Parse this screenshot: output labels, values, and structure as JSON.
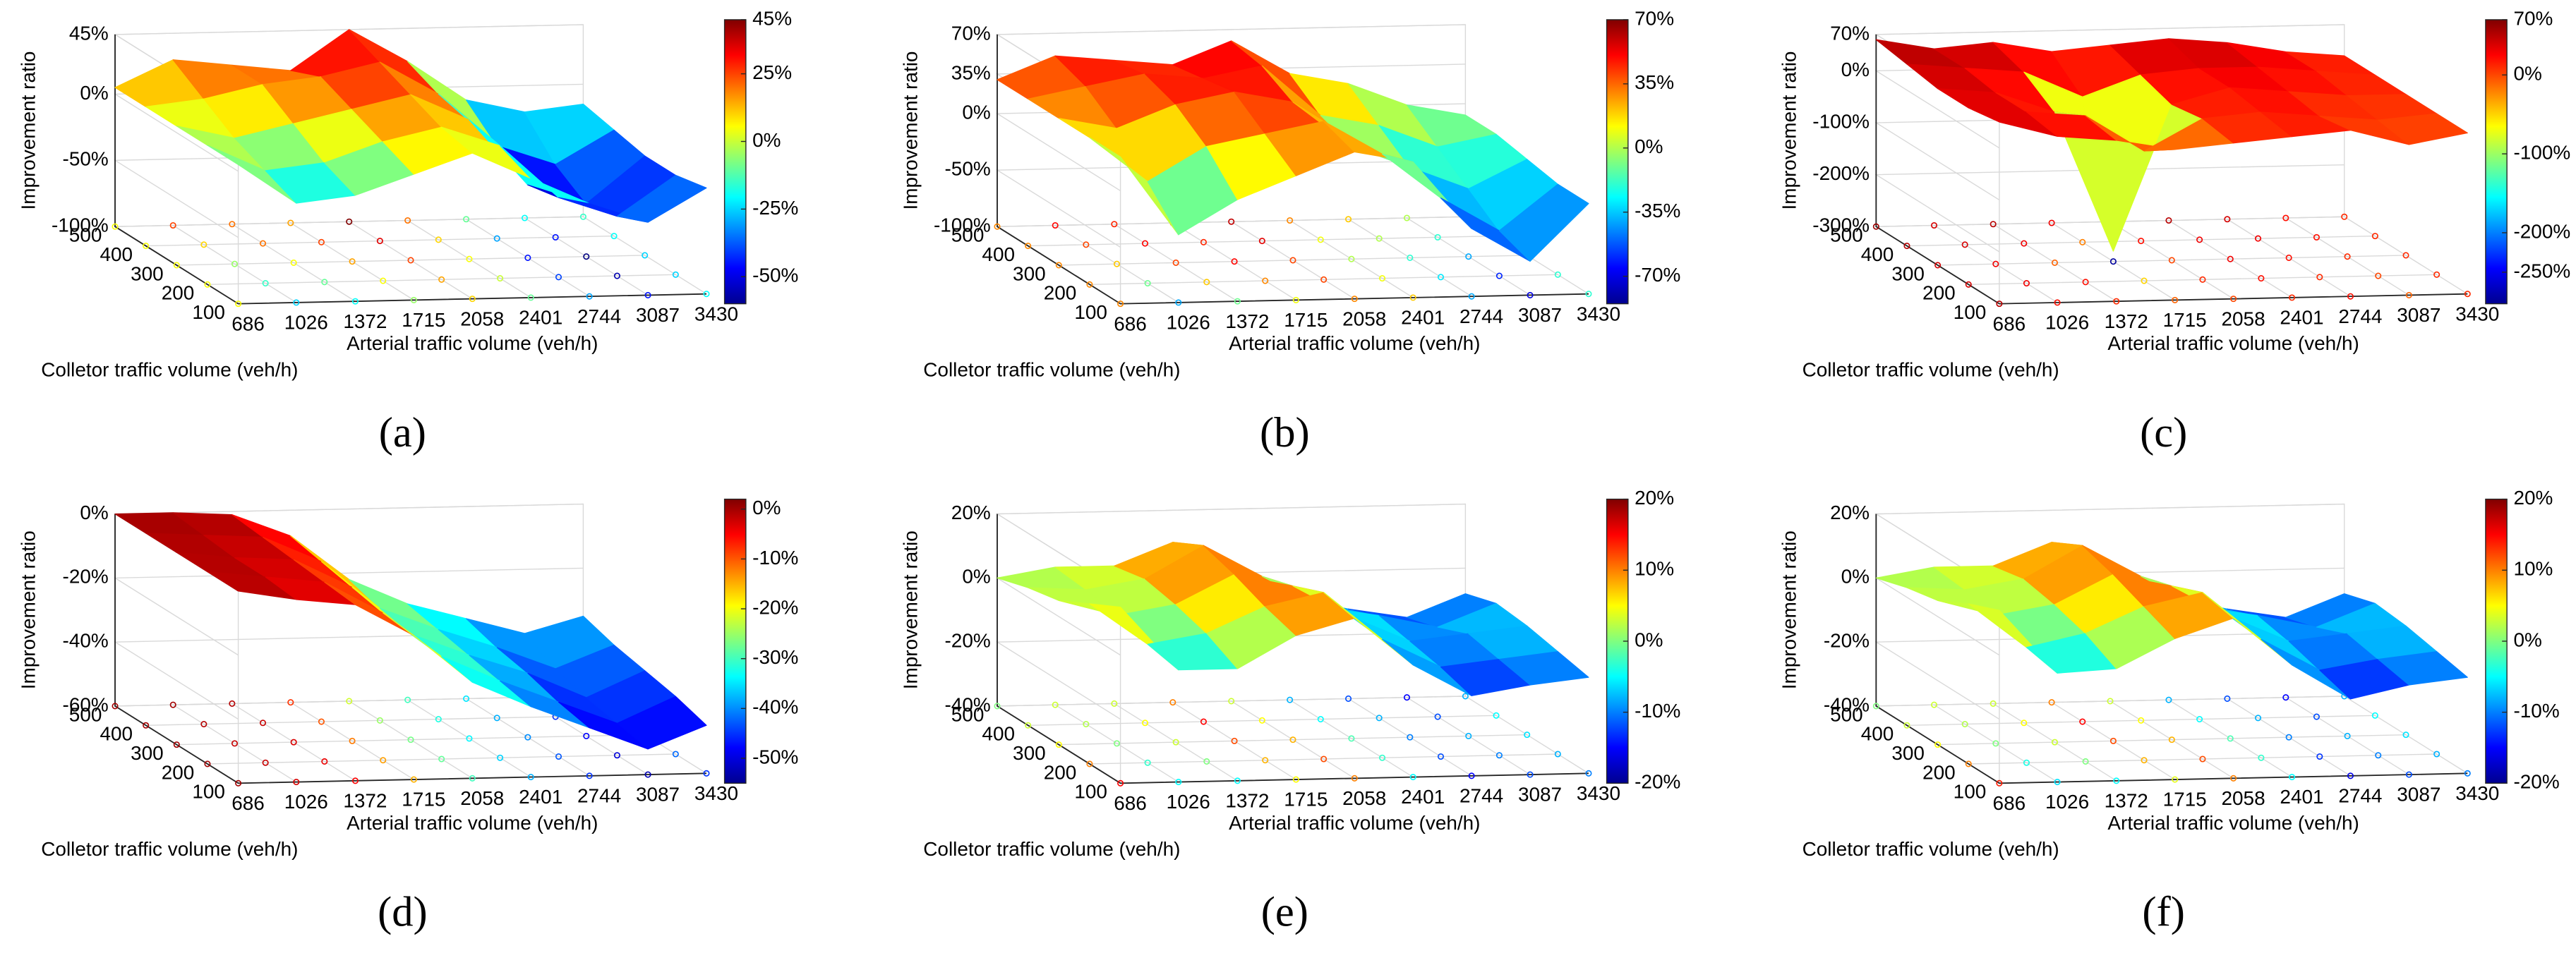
{
  "chart_data": [
    {
      "type": "surface",
      "panel": "(a)",
      "zlabel": "Improvement ratio",
      "xlabel": "Arterial traffic volume (veh/h)",
      "ylabel": "Colletor traffic volume (veh/h)",
      "x": [
        686,
        1026,
        1372,
        1715,
        2058,
        2401,
        2744,
        3087,
        3430
      ],
      "xlim": [
        686,
        3430
      ],
      "xticks": [
        686,
        1026,
        1372,
        1715,
        2058,
        2401,
        2744,
        3087,
        3430
      ],
      "y": [
        100,
        200,
        300,
        400,
        500
      ],
      "ylim": [
        100,
        500
      ],
      "yticks": [
        100,
        200,
        300,
        400,
        500
      ],
      "zlim": [
        -100,
        45
      ],
      "zticks": [
        {
          "value": -100,
          "label": "-100%"
        },
        {
          "value": -50,
          "label": "-50%"
        },
        {
          "value": 0,
          "label": "0%"
        },
        {
          "value": 45,
          "label": "45%"
        }
      ],
      "clim": [
        -60,
        45
      ],
      "cticks": [
        {
          "value": -50,
          "label": "-50%"
        },
        {
          "value": -25,
          "label": "-25%"
        },
        {
          "value": 0,
          "label": "0%"
        },
        {
          "value": 25,
          "label": "25%"
        },
        {
          "value": 45,
          "label": "45%"
        }
      ],
      "values": [
        [
          5,
          -25,
          -20,
          -5,
          10,
          -10,
          -30,
          -45,
          -20
        ],
        [
          5,
          -15,
          -10,
          5,
          15,
          0,
          -40,
          -55,
          -25
        ],
        [
          5,
          -5,
          5,
          15,
          25,
          5,
          -45,
          -60,
          -25
        ],
        [
          5,
          10,
          20,
          25,
          35,
          10,
          -30,
          -45,
          -20
        ],
        [
          5,
          25,
          20,
          15,
          45,
          20,
          -10,
          -20,
          -15
        ]
      ]
    },
    {
      "type": "surface",
      "panel": "(b)",
      "zlabel": "Improvement ratio",
      "xlabel": "Arterial traffic volume (veh/h)",
      "ylabel": "Colletor traffic volume (veh/h)",
      "x": [
        686,
        1026,
        1372,
        1715,
        2058,
        2401,
        2744,
        3087,
        3430
      ],
      "xlim": [
        686,
        3430
      ],
      "xticks": [
        686,
        1026,
        1372,
        1715,
        2058,
        2401,
        2744,
        3087,
        3430
      ],
      "y": [
        100,
        200,
        300,
        400,
        500
      ],
      "ylim": [
        100,
        500
      ],
      "yticks": [
        100,
        200,
        300,
        400,
        500
      ],
      "zlim": [
        -100,
        70
      ],
      "zticks": [
        {
          "value": -100,
          "label": "-100%"
        },
        {
          "value": -50,
          "label": "-50%"
        },
        {
          "value": 0,
          "label": "0%"
        },
        {
          "value": 35,
          "label": "35%"
        },
        {
          "value": 70,
          "label": "70%"
        }
      ],
      "clim": [
        -85,
        70
      ],
      "cticks": [
        {
          "value": -70,
          "label": "-70%"
        },
        {
          "value": -35,
          "label": "-35%"
        },
        {
          "value": 0,
          "label": "0%"
        },
        {
          "value": 35,
          "label": "35%"
        },
        {
          "value": 70,
          "label": "70%"
        }
      ],
      "values": [
        [
          30,
          -40,
          -10,
          10,
          30,
          20,
          -40,
          -70,
          -20
        ],
        [
          30,
          -10,
          20,
          30,
          40,
          10,
          -30,
          -60,
          -20
        ],
        [
          30,
          20,
          40,
          50,
          40,
          0,
          -20,
          -40,
          -15
        ],
        [
          30,
          40,
          50,
          45,
          55,
          10,
          0,
          -20,
          -10
        ],
        [
          30,
          50,
          45,
          40,
          60,
          30,
          20,
          0,
          -10
        ]
      ]
    },
    {
      "type": "surface",
      "panel": "(c)",
      "zlabel": "Improvement ratio",
      "xlabel": "Arterial traffic volume (veh/h)",
      "ylabel": "Colletor traffic volume (veh/h)",
      "x": [
        686,
        1026,
        1372,
        1715,
        2058,
        2401,
        2744,
        3087,
        3430
      ],
      "xlim": [
        686,
        3430
      ],
      "xticks": [
        686,
        1026,
        1372,
        1715,
        2058,
        2401,
        2744,
        3087,
        3430
      ],
      "y": [
        100,
        200,
        300,
        400,
        500
      ],
      "ylim": [
        100,
        500
      ],
      "yticks": [
        100,
        200,
        300,
        400,
        500
      ],
      "zlim": [
        -300,
        70
      ],
      "zticks": [
        {
          "value": -300,
          "label": "-300%"
        },
        {
          "value": -200,
          "label": "-200%"
        },
        {
          "value": -100,
          "label": "-100%"
        },
        {
          "value": 0,
          "label": "0%"
        },
        {
          "value": 70,
          "label": "70%"
        }
      ],
      "clim": [
        -290,
        70
      ],
      "cticks": [
        {
          "value": -250,
          "label": "-250%"
        },
        {
          "value": -200,
          "label": "-200%"
        },
        {
          "value": -100,
          "label": "-100%"
        },
        {
          "value": 0,
          "label": "0%"
        },
        {
          "value": 70,
          "label": "70%"
        }
      ],
      "values": [
        [
          50,
          20,
          10,
          -10,
          0,
          10,
          20,
          -10,
          10
        ],
        [
          40,
          30,
          20,
          -50,
          10,
          20,
          10,
          0,
          10
        ],
        [
          40,
          30,
          -10,
          -280,
          0,
          30,
          20,
          10,
          10
        ],
        [
          50,
          40,
          30,
          -20,
          20,
          30,
          30,
          20,
          10
        ],
        [
          60,
          40,
          50,
          30,
          40,
          50,
          40,
          20,
          10
        ]
      ]
    },
    {
      "type": "surface",
      "panel": "(d)",
      "zlabel": "Improvement ratio",
      "xlabel": "Arterial traffic volume (veh/h)",
      "ylabel": "Colletor traffic volume (veh/h)",
      "x": [
        686,
        1026,
        1372,
        1715,
        2058,
        2401,
        2744,
        3087,
        3430
      ],
      "xlim": [
        686,
        3430
      ],
      "xticks": [
        686,
        1026,
        1372,
        1715,
        2058,
        2401,
        2744,
        3087,
        3430
      ],
      "y": [
        100,
        200,
        300,
        400,
        500
      ],
      "ylim": [
        100,
        500
      ],
      "yticks": [
        100,
        200,
        300,
        400,
        500
      ],
      "zlim": [
        -60,
        0
      ],
      "zticks": [
        {
          "value": -60,
          "label": "-60%"
        },
        {
          "value": -40,
          "label": "-40%"
        },
        {
          "value": -20,
          "label": "-20%"
        },
        {
          "value": 0,
          "label": "0%"
        }
      ],
      "clim": [
        -55,
        2
      ],
      "cticks": [
        {
          "value": -50,
          "label": "-50%"
        },
        {
          "value": -40,
          "label": "-40%"
        },
        {
          "value": -30,
          "label": "-30%"
        },
        {
          "value": -20,
          "label": "-20%"
        },
        {
          "value": -10,
          "label": "-10%"
        },
        {
          "value": 0,
          "label": "0%"
        }
      ],
      "values": [
        [
          0,
          -3,
          -5,
          -15,
          -30,
          -38,
          -45,
          -52,
          -45
        ],
        [
          0,
          -2,
          -4,
          -14,
          -28,
          -36,
          -43,
          -50,
          -42
        ],
        [
          0,
          -2,
          -3,
          -12,
          -27,
          -34,
          -40,
          -48,
          -40
        ],
        [
          0,
          -1,
          -2,
          -10,
          -25,
          -32,
          -38,
          -45,
          -38
        ],
        [
          0,
          0,
          -1,
          -8,
          -22,
          -30,
          -35,
          -40,
          -35
        ]
      ]
    },
    {
      "type": "surface",
      "panel": "(e)",
      "zlabel": "Improvement ratio",
      "xlabel": "Arterial traffic volume (veh/h)",
      "ylabel": "Colletor traffic volume (veh/h)",
      "x": [
        686,
        1026,
        1372,
        1715,
        2058,
        2401,
        2744,
        3087,
        3430
      ],
      "xlim": [
        686,
        3430
      ],
      "xticks": [
        686,
        1026,
        1372,
        1715,
        2058,
        2401,
        2744,
        3087,
        3430
      ],
      "y": [
        100,
        200,
        300,
        400,
        500
      ],
      "ylim": [
        100,
        500
      ],
      "yticks": [
        100,
        200,
        300,
        400,
        500
      ],
      "zlim": [
        -40,
        20
      ],
      "zticks": [
        {
          "value": -40,
          "label": "-40%"
        },
        {
          "value": -20,
          "label": "-20%"
        },
        {
          "value": 0,
          "label": "0%"
        },
        {
          "value": 20,
          "label": "20%"
        }
      ],
      "clim": [
        -20,
        20
      ],
      "cticks": [
        {
          "value": -20,
          "label": "-20%"
        },
        {
          "value": -10,
          "label": "-10%"
        },
        {
          "value": 0,
          "label": "0%"
        },
        {
          "value": 10,
          "label": "10%"
        },
        {
          "value": 20,
          "label": "20%"
        }
      ],
      "values": [
        [
          15,
          -5,
          -5,
          5,
          10,
          -5,
          -15,
          -12,
          -10
        ],
        [
          10,
          -3,
          0,
          8,
          12,
          -3,
          -12,
          -10,
          -8
        ],
        [
          5,
          0,
          3,
          12,
          8,
          -2,
          -10,
          -8,
          -6
        ],
        [
          3,
          2,
          5,
          15,
          5,
          -5,
          -8,
          -12,
          -5
        ],
        [
          0,
          3,
          3,
          10,
          3,
          -8,
          -12,
          -15,
          -8
        ]
      ]
    },
    {
      "type": "surface",
      "panel": "(f)",
      "zlabel": "Improvement ratio",
      "xlabel": "Arterial traffic volume (veh/h)",
      "ylabel": "Colletor traffic volume (veh/h)",
      "x": [
        686,
        1026,
        1372,
        1715,
        2058,
        2401,
        2744,
        3087,
        3430
      ],
      "xlim": [
        686,
        3430
      ],
      "xticks": [
        686,
        1026,
        1372,
        1715,
        2058,
        2401,
        2744,
        3087,
        3430
      ],
      "y": [
        100,
        200,
        300,
        400,
        500
      ],
      "ylim": [
        100,
        500
      ],
      "yticks": [
        100,
        200,
        300,
        400,
        500
      ],
      "zlim": [
        -40,
        20
      ],
      "zticks": [
        {
          "value": -40,
          "label": "-40%"
        },
        {
          "value": -20,
          "label": "-20%"
        },
        {
          "value": 0,
          "label": "0%"
        },
        {
          "value": 20,
          "label": "20%"
        }
      ],
      "clim": [
        -20,
        20
      ],
      "cticks": [
        {
          "value": -20,
          "label": "-20%"
        },
        {
          "value": -10,
          "label": "-10%"
        },
        {
          "value": 0,
          "label": "0%"
        },
        {
          "value": 10,
          "label": "10%"
        },
        {
          "value": 20,
          "label": "20%"
        }
      ],
      "values": [
        [
          14,
          -6,
          -5,
          4,
          10,
          -5,
          -16,
          -12,
          -10
        ],
        [
          10,
          -4,
          0,
          8,
          12,
          -3,
          -13,
          -10,
          -8
        ],
        [
          5,
          0,
          3,
          12,
          8,
          -2,
          -10,
          -8,
          -6
        ],
        [
          3,
          2,
          5,
          15,
          5,
          -5,
          -8,
          -12,
          -5
        ],
        [
          0,
          3,
          3,
          10,
          3,
          -8,
          -12,
          -15,
          -8
        ]
      ]
    }
  ]
}
